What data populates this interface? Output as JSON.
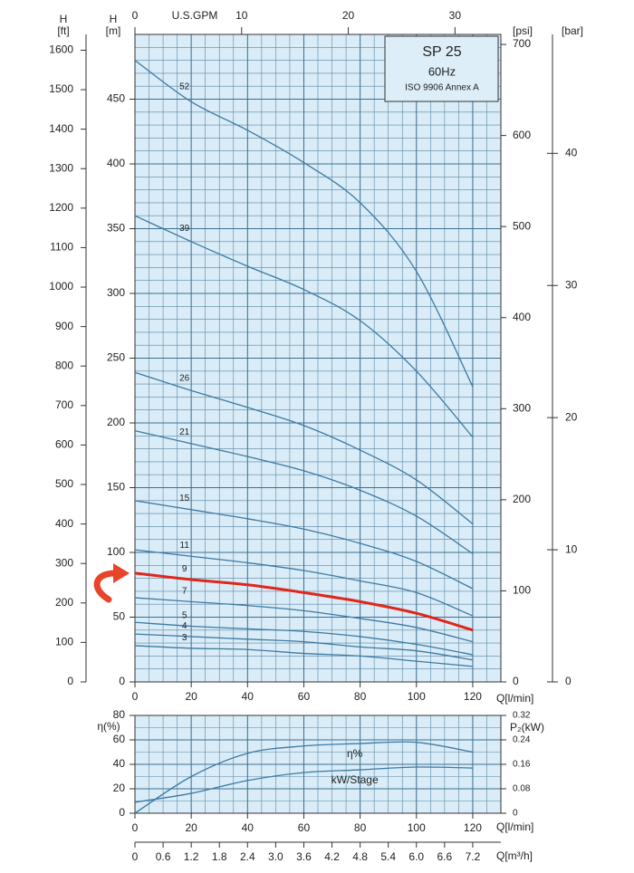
{
  "chart_data": [
    {
      "type": "line",
      "title": "SP 25",
      "subtitle": "60Hz",
      "annotation": "ISO 9906 Annex A",
      "x_label": "Q[l/min]",
      "x": [
        0,
        20,
        40,
        60,
        80,
        100,
        120
      ],
      "xlim": [
        0,
        130
      ],
      "xticks": [
        0,
        20,
        40,
        60,
        80,
        100,
        120
      ],
      "y_label": "H",
      "y_unit": "[m]",
      "ylim": [
        0,
        500
      ],
      "yticks": [
        0,
        50,
        100,
        150,
        200,
        250,
        300,
        350,
        400,
        450
      ],
      "grid": true,
      "y_ft": {
        "label": "H",
        "unit": "[ft]",
        "lim": [
          0,
          1640
        ],
        "ticks": [
          0,
          100,
          200,
          300,
          400,
          500,
          600,
          700,
          800,
          900,
          1000,
          1100,
          1200,
          1300,
          1400,
          1500,
          1600
        ]
      },
      "y_psi": {
        "unit": "[psi]",
        "lim": [
          0,
          711
        ],
        "ticks": [
          0,
          100,
          200,
          300,
          400,
          500,
          600,
          700
        ]
      },
      "y_bar": {
        "unit": "[bar]",
        "lim": [
          0,
          49
        ],
        "ticks": [
          0,
          10,
          20,
          30,
          40
        ]
      },
      "x_gpm": {
        "label": "U.S.GPM",
        "lim": [
          0,
          34.3
        ],
        "ticks": [
          0,
          10,
          20,
          30
        ]
      },
      "series": [
        {
          "name": "52",
          "color": "#3d7aa3",
          "values": [
            480,
            448,
            426,
            401,
            370,
            317,
            228
          ]
        },
        {
          "name": "39",
          "color": "#3d7aa3",
          "values": [
            360,
            340,
            321,
            303,
            279,
            240,
            189
          ]
        },
        {
          "name": "26",
          "color": "#3d7aa3",
          "values": [
            239,
            225,
            212,
            198,
            179,
            156,
            122
          ]
        },
        {
          "name": "21",
          "color": "#3d7aa3",
          "values": [
            194,
            184,
            174,
            163,
            148,
            128,
            99
          ]
        },
        {
          "name": "15",
          "color": "#3d7aa3",
          "values": [
            140,
            133,
            126,
            118,
            107,
            93,
            72
          ]
        },
        {
          "name": "11",
          "color": "#3d7aa3",
          "values": [
            102,
            97,
            92,
            86,
            78,
            69,
            51
          ]
        },
        {
          "name": "9",
          "color": "#e0261b",
          "values": [
            84,
            79,
            75,
            69,
            62,
            53,
            40
          ]
        },
        {
          "name": "7",
          "color": "#3d7aa3",
          "values": [
            65,
            62,
            59,
            55,
            49,
            42,
            31
          ]
        },
        {
          "name": "5",
          "color": "#3d7aa3",
          "values": [
            46,
            43,
            41,
            39,
            35,
            29,
            21
          ]
        },
        {
          "name": "4",
          "color": "#3d7aa3",
          "values": [
            37,
            35,
            33,
            31,
            27,
            24,
            17
          ]
        },
        {
          "name": "3",
          "color": "#3d7aa3",
          "values": [
            28,
            26,
            25,
            22,
            20,
            16,
            12
          ]
        }
      ]
    },
    {
      "type": "line",
      "x_label": "Q[l/min]",
      "x": [
        0,
        20,
        40,
        60,
        80,
        100,
        120
      ],
      "xlim": [
        0,
        130
      ],
      "xticks": [
        0,
        20,
        40,
        60,
        80,
        100,
        120
      ],
      "y_label": "η(%)",
      "ylim": [
        0,
        80
      ],
      "yticks": [
        0,
        20,
        40,
        60,
        80
      ],
      "grid": true,
      "y2_label": "P₂(kW)",
      "y2lim": [
        0,
        0.32
      ],
      "y2ticks": [
        0,
        0.08,
        0.16,
        0.24,
        0.32
      ],
      "x2": {
        "label": "Q[m³/h]",
        "lim": [
          0,
          7.8
        ],
        "ticks": [
          0,
          0.6,
          1.2,
          1.8,
          2.4,
          {
            "value": 3,
            "label": "3.0"
          },
          3.6,
          4.2,
          4.8,
          5.4,
          {
            "value": 6,
            "label": "6.0"
          },
          6.6,
          7.2
        ]
      },
      "series": [
        {
          "name": "η%",
          "color": "#3d7aa3",
          "values": [
            0,
            30,
            49,
            55,
            57,
            58,
            50
          ]
        },
        {
          "name": "kW/Stage",
          "color": "#3d7aa3",
          "axis": "y2",
          "values": [
            0.036,
            0.065,
            0.107,
            0.133,
            0.142,
            0.151,
            0.148
          ]
        }
      ]
    }
  ]
}
